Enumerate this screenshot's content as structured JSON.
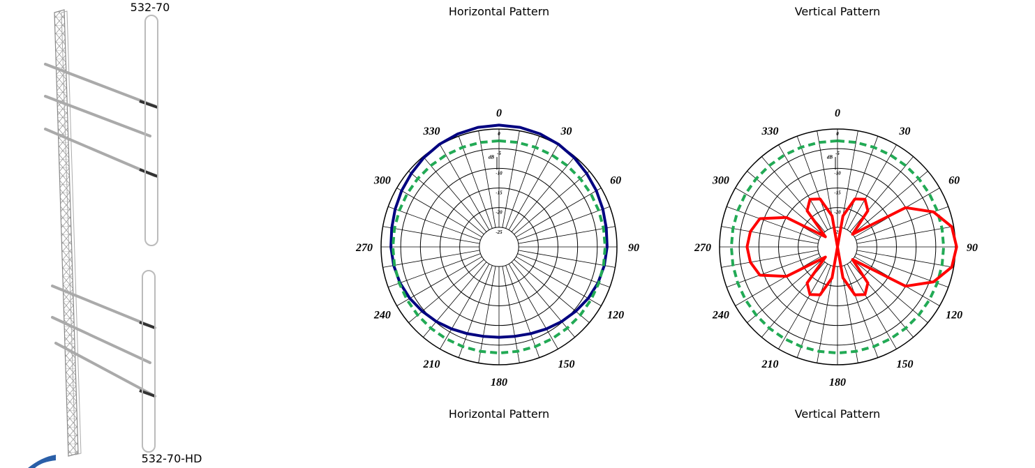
{
  "products": {
    "top_label": "532-70",
    "bottom_label": "532-70-HD"
  },
  "chart_data": [
    {
      "type": "polar",
      "title": "Horizontal Pattern",
      "caption": "Horizontal Pattern",
      "theta": [
        0,
        10,
        20,
        30,
        40,
        50,
        60,
        70,
        80,
        90,
        100,
        110,
        120,
        130,
        140,
        150,
        160,
        170,
        180,
        190,
        200,
        210,
        220,
        230,
        240,
        250,
        260,
        270,
        280,
        290,
        300,
        310,
        320,
        330,
        340,
        350
      ],
      "rlim": [
        -30,
        0
      ],
      "rticks": [
        -25,
        -20,
        -15,
        -10,
        -5,
        0
      ],
      "r_label": "dB",
      "angle_ticks": [
        0,
        30,
        60,
        90,
        120,
        150,
        180,
        210,
        240,
        270,
        300,
        330
      ],
      "series": [
        {
          "color": "#000080",
          "style": "solid",
          "values": [
            1,
            0.9,
            0.6,
            0.2,
            -0.3,
            -0.9,
            -1.4,
            -1.9,
            -2.3,
            -2.5,
            -2.8,
            -3.2,
            -3.8,
            -4.5,
            -5.2,
            -5.9,
            -6.5,
            -6.9,
            -7,
            -6.9,
            -6.5,
            -5.9,
            -5.2,
            -4.5,
            -3.8,
            -3.2,
            -2.8,
            -2.5,
            -2.3,
            -1.9,
            -1.4,
            -0.9,
            -0.3,
            0.2,
            0.6,
            0.9
          ]
        },
        {
          "color": "#22aa55",
          "style": "dashed",
          "values": [
            -3,
            -3,
            -3,
            -3,
            -3,
            -3,
            -3,
            -3,
            -3,
            -3,
            -3,
            -3,
            -3,
            -3,
            -3,
            -3,
            -3,
            -3,
            -3,
            -3,
            -3,
            -3,
            -3,
            -3,
            -3,
            -3,
            -3,
            -3,
            -3,
            -3,
            -3,
            -3,
            -3,
            -3,
            -3,
            -3
          ]
        }
      ]
    },
    {
      "type": "polar",
      "title": "Vertical Pattern",
      "caption": "Vertical Pattern",
      "theta": [
        0,
        10,
        20,
        30,
        40,
        50,
        60,
        70,
        80,
        90,
        100,
        110,
        120,
        130,
        140,
        150,
        160,
        170,
        180,
        190,
        200,
        210,
        220,
        230,
        240,
        250,
        260,
        270,
        280,
        290,
        300,
        310,
        320,
        330,
        340,
        350
      ],
      "rlim": [
        -30,
        0
      ],
      "rticks": [
        -25,
        -20,
        -15,
        -10,
        -5,
        0
      ],
      "r_label": "dB",
      "angle_ticks": [
        0,
        30,
        60,
        90,
        120,
        150,
        180,
        210,
        240,
        270,
        300,
        330
      ],
      "series": [
        {
          "color": "#22aa55",
          "style": "dashed",
          "values": [
            -3,
            -3,
            -3,
            -3,
            -3,
            -3,
            -3,
            -3,
            -3,
            -3,
            -3,
            -3,
            -3,
            -3,
            -3,
            -3,
            -3,
            -3,
            -3,
            -3,
            -3,
            -3,
            -3,
            -3,
            -3,
            -3,
            -3,
            -3,
            -3,
            -3,
            -3,
            -3,
            -3,
            -3,
            -3,
            -3
          ]
        },
        {
          "color": "#ff0000",
          "style": "solid",
          "values": [
            -30,
            -22,
            -17,
            -16,
            -18,
            -25,
            -10,
            -4,
            -0.5,
            0.3,
            -0.5,
            -4,
            -10,
            -25,
            -18,
            -16,
            -17,
            -22,
            -30,
            -22,
            -17,
            -16,
            -18,
            -26,
            -15,
            -9,
            -7.5,
            -7,
            -7.5,
            -9,
            -15,
            -26,
            -18,
            -16,
            -17,
            -22
          ]
        }
      ]
    }
  ]
}
